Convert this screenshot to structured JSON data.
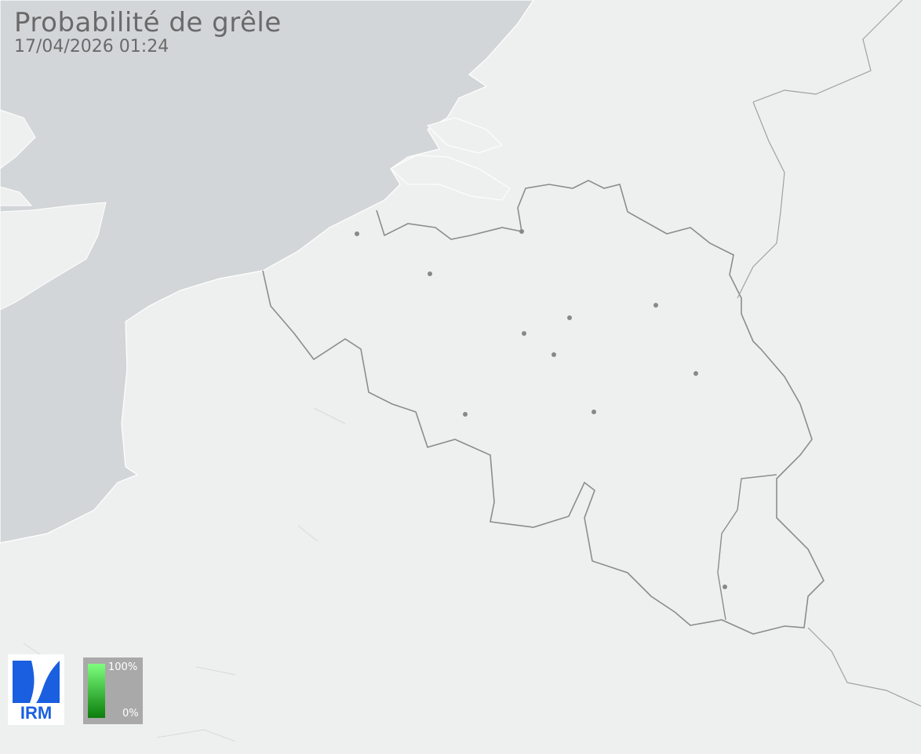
{
  "header": {
    "title": "Probabilité de grêle",
    "timestamp": "17/04/2026 01:24"
  },
  "logo": {
    "text": "IRM",
    "color": "#1a5fe0"
  },
  "legend": {
    "max_label": "100%",
    "min_label": "0%",
    "color_high": "#7dff7d",
    "color_low": "#0b7e0b"
  },
  "map": {
    "land_color": "#eef0ef",
    "sea_color": "#d3d6d8",
    "border_color": "#8a8a8a",
    "city_marker_color": "#888888",
    "city_count": 12
  }
}
